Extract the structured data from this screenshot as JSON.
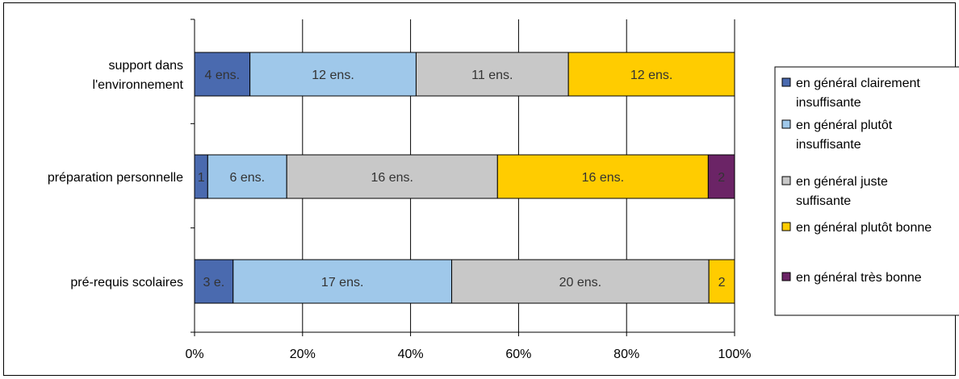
{
  "chart_data": {
    "type": "bar",
    "orientation": "horizontal",
    "stacked": "percent",
    "categories": [
      "support dans l'environnement",
      "préparation personnelle",
      "pré-requis scolaires"
    ],
    "category_label_lines": [
      [
        "support dans",
        "l'environnement"
      ],
      [
        "préparation personnelle"
      ],
      [
        "pré-requis scolaires"
      ]
    ],
    "series": [
      {
        "name": "en général clairement insuffisante",
        "legend_lines": [
          "en général clairement",
          "insuffisante"
        ],
        "color": "#4a6aaf",
        "values": [
          4,
          1,
          3
        ],
        "labels": [
          "4 ens.",
          "1",
          "3 e."
        ]
      },
      {
        "name": "en général plutôt insuffisante",
        "legend_lines": [
          "en général plutôt",
          "insuffisante"
        ],
        "color": "#9fc8ea",
        "values": [
          12,
          6,
          17
        ],
        "labels": [
          "12 ens.",
          "6 ens.",
          "17 ens."
        ]
      },
      {
        "name": "en général juste suffisante",
        "legend_lines": [
          "en général juste",
          "suffisante"
        ],
        "color": "#c8c8c8",
        "values": [
          11,
          16,
          20
        ],
        "labels": [
          "11 ens.",
          "16 ens.",
          "20 ens."
        ]
      },
      {
        "name": "en général plutôt bonne",
        "legend_lines": [
          "en général plutôt bonne"
        ],
        "color": "#ffcc00",
        "values": [
          12,
          16,
          2
        ],
        "labels": [
          "12 ens.",
          "16 ens.",
          "2"
        ]
      },
      {
        "name": "en général très bonne",
        "legend_lines": [
          "en général très bonne"
        ],
        "color": "#6b2466",
        "values": [
          0,
          2,
          0
        ],
        "labels": [
          "",
          "2",
          ""
        ]
      }
    ],
    "xaxis": {
      "ticks": [
        "0%",
        "20%",
        "40%",
        "60%",
        "80%",
        "100%"
      ],
      "range": [
        0,
        100
      ]
    },
    "grid": "vertical",
    "legend_position": "right"
  }
}
